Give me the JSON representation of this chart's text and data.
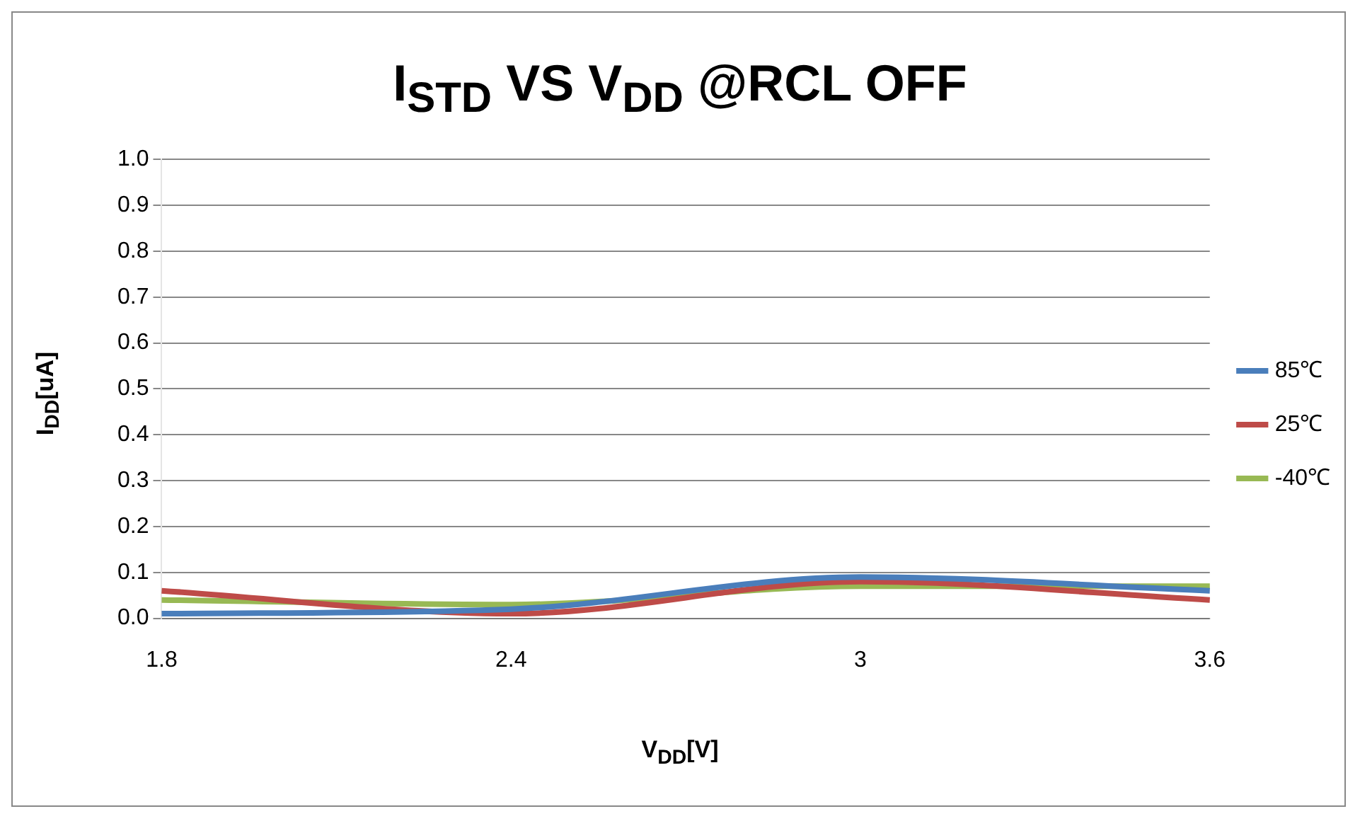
{
  "chart_data": {
    "type": "line",
    "title": "I$_{STD}$ VS V$_{DD}$ @RCL OFF",
    "xlabel": "V$_{DD}$[V]",
    "ylabel": "I$_{DD}$[uA]",
    "categories": [
      "1.8",
      "2.4",
      "3",
      "3.6"
    ],
    "series": [
      {
        "name": "85℃",
        "color": "#4a7ebb",
        "values": [
          0.01,
          0.02,
          0.09,
          0.06
        ]
      },
      {
        "name": "25℃",
        "color": "#be4b48",
        "values": [
          0.06,
          0.01,
          0.08,
          0.04
        ]
      },
      {
        "name": "-40℃",
        "color": "#98b954",
        "values": [
          0.04,
          0.03,
          0.07,
          0.07
        ]
      }
    ],
    "ylim": [
      0,
      1
    ],
    "yticks": [
      {
        "value": 0,
        "label": "0.0"
      },
      0.1,
      0.2,
      0.3,
      0.4,
      0.5,
      0.6,
      0.7,
      0.8,
      0.9,
      {
        "value": 1,
        "label": "1.0"
      }
    ],
    "grid": "y",
    "legend": "right",
    "marker": "none"
  }
}
